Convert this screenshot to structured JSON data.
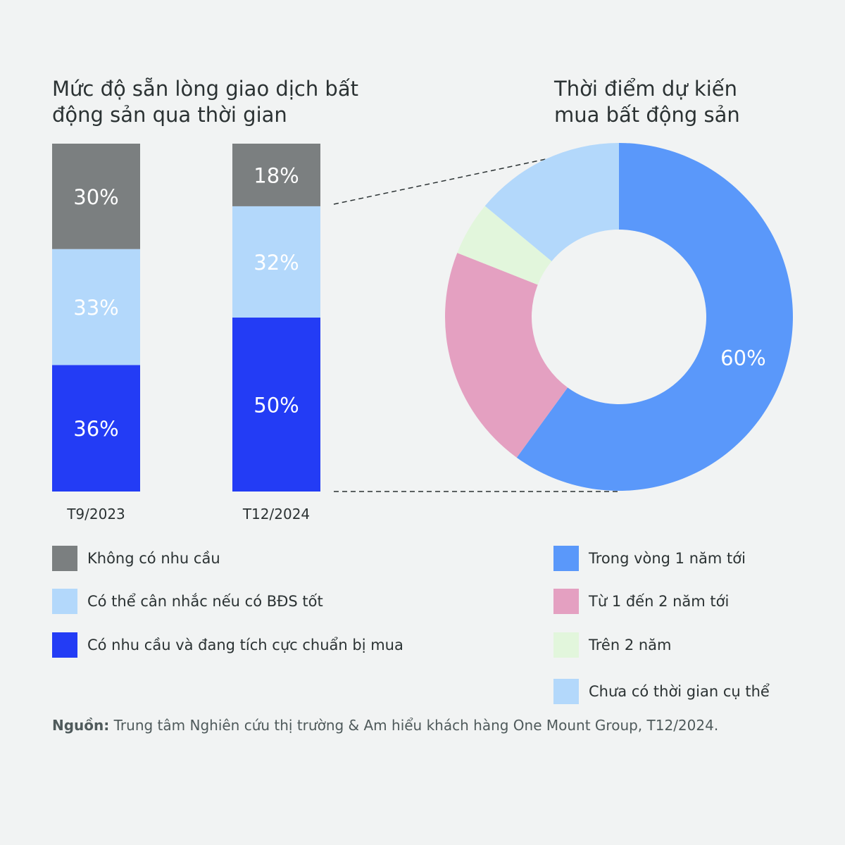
{
  "left_title": "Mức độ sẵn lòng giao dịch bất động sản qua thời gian",
  "right_title": "Thời điểm dự kiến mua bất động sản",
  "chart_data": [
    {
      "type": "bar",
      "stacked": true,
      "title": "Mức độ sẵn lòng giao dịch bất động sản qua thời gian",
      "categories": [
        "T9/2023",
        "T12/2024"
      ],
      "series": [
        {
          "name": "Có nhu cầu và đang tích cực chuẩn bị mua",
          "values": [
            36,
            50
          ],
          "labels": [
            "36%",
            "50%"
          ],
          "color": "#233cf5"
        },
        {
          "name": "Có thể cân nhắc nếu có BĐS tốt",
          "values": [
            33,
            32
          ],
          "labels": [
            "33%",
            "32%"
          ],
          "color": "#b3d8fb"
        },
        {
          "name": "Không có nhu cầu",
          "values": [
            30,
            18
          ],
          "labels": [
            "30%",
            "18%"
          ],
          "color": "#7b7f80"
        }
      ],
      "ylim": [
        0,
        100
      ]
    },
    {
      "type": "pie",
      "donut": true,
      "title": "Thời điểm dự kiến mua bất động sản",
      "slices": [
        {
          "name": "Trong vòng 1 năm tới",
          "value": 60,
          "label": "60%",
          "color": "#5a98fa"
        },
        {
          "name": "Từ 1 đến 2 năm tới",
          "value": 21,
          "label": "",
          "color": "#e4a0c1"
        },
        {
          "name": "Trên 2 năm",
          "value": 5,
          "label": "",
          "color": "#e2f6dc"
        },
        {
          "name": "Chưa có thời gian cụ thể",
          "value": 14,
          "label": "",
          "color": "#b3d8fb"
        }
      ]
    }
  ],
  "legend_left": [
    {
      "label": "Không có nhu cầu",
      "color": "#7b7f80"
    },
    {
      "label": "Có thể cân nhắc nếu có BĐS tốt",
      "color": "#b3d8fb"
    },
    {
      "label": "Có nhu cầu và đang tích cực chuẩn bị mua",
      "color": "#233cf5"
    }
  ],
  "legend_right": [
    {
      "label": "Trong vòng 1 năm tới",
      "color": "#5a98fa"
    },
    {
      "label": "Từ 1 đến 2 năm tới",
      "color": "#e4a0c1"
    },
    {
      "label": "Trên 2 năm",
      "color": "#e2f6dc"
    },
    {
      "label": "Chưa có thời gian cụ thể",
      "color": "#b3d8fb"
    }
  ],
  "source": {
    "prefix": "Nguồn:",
    "text": " Trung tâm Nghiên cứu thị trường & Am hiểu khách hàng One Mount Group, T12/2024."
  }
}
